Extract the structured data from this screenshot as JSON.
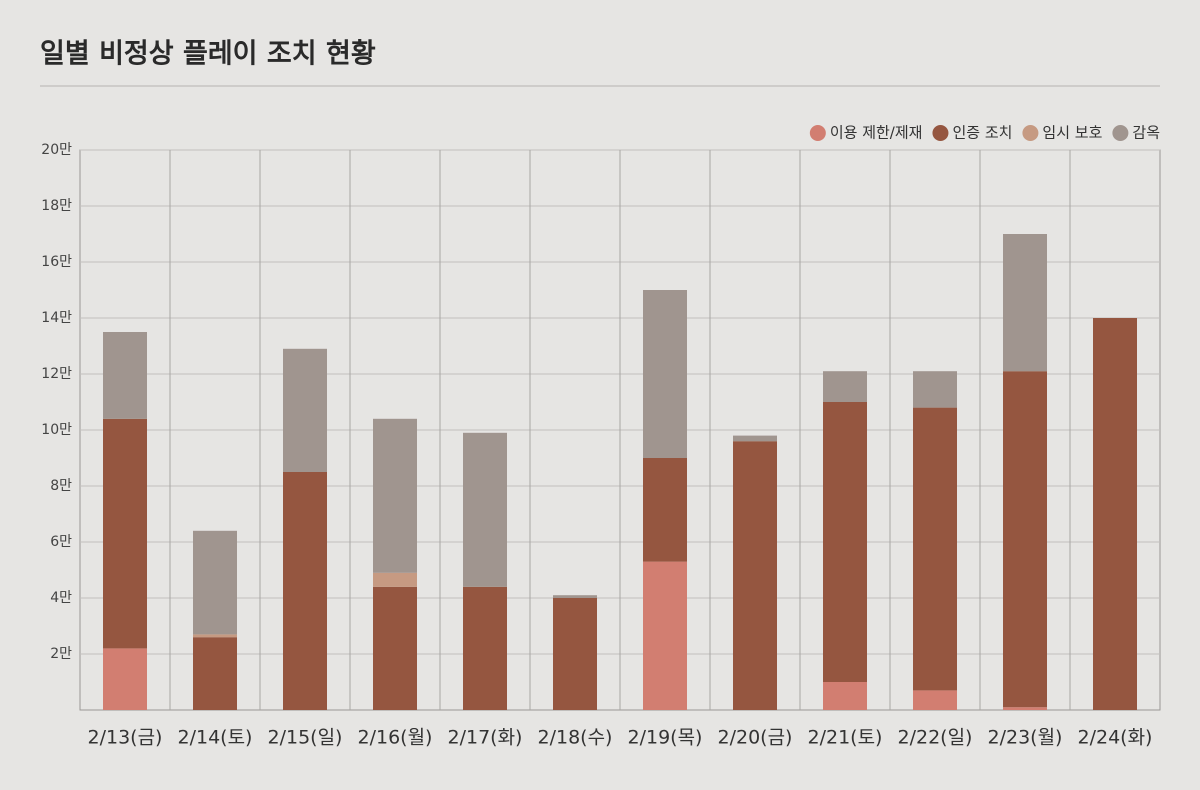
{
  "chart_data": {
    "type": "stacked-bar",
    "title": "일별 비정상 플레이 조치 현황",
    "categories": [
      "2/13(금)",
      "2/14(토)",
      "2/15(일)",
      "2/16(월)",
      "2/17(화)",
      "2/18(수)",
      "2/19(목)",
      "2/20(금)",
      "2/21(토)",
      "2/22(일)",
      "2/23(월)",
      "2/24(화)"
    ],
    "series": [
      {
        "name": "이용 제한/제재",
        "color": "#d27e71",
        "values": [
          2.2,
          0,
          0,
          0,
          0,
          0,
          5.3,
          0,
          1.0,
          0.7,
          0.1,
          0
        ]
      },
      {
        "name": "인증 조치",
        "color": "#955640",
        "values": [
          8.2,
          2.6,
          8.5,
          4.4,
          4.4,
          4.0,
          3.7,
          9.6,
          10.0,
          10.1,
          12.0,
          14.0
        ]
      },
      {
        "name": "임시 보호",
        "color": "#c69a82",
        "values": [
          0,
          0.1,
          0,
          0.5,
          0,
          0,
          0,
          0,
          0,
          0,
          0,
          0
        ]
      },
      {
        "name": "감옥",
        "color": "#a0958f",
        "values": [
          3.1,
          3.7,
          4.4,
          5.5,
          5.5,
          0.1,
          6.0,
          0.2,
          1.1,
          1.3,
          4.9,
          0
        ]
      }
    ],
    "ylim": [
      0,
      20
    ],
    "yticks": [
      {
        "value": 2,
        "label": "2만"
      },
      {
        "value": 4,
        "label": "4만"
      },
      {
        "value": 6,
        "label": "6만"
      },
      {
        "value": 8,
        "label": "8만"
      },
      {
        "value": 10,
        "label": "10만"
      },
      {
        "value": 12,
        "label": "12만"
      },
      {
        "value": 14,
        "label": "14만"
      },
      {
        "value": 16,
        "label": "16만"
      },
      {
        "value": 18,
        "label": "18만"
      },
      {
        "value": 20,
        "label": "20만"
      }
    ],
    "grid": true,
    "legend": "top-right"
  }
}
